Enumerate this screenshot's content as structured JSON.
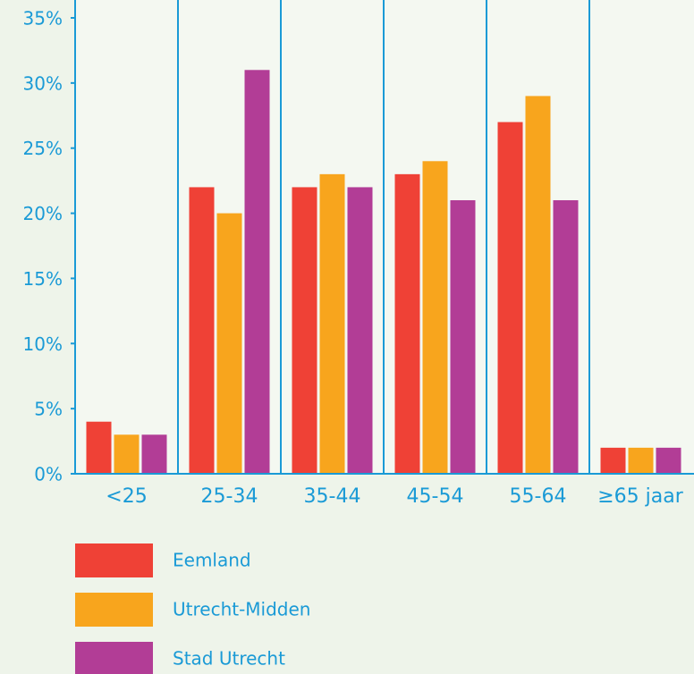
{
  "chart_data": {
    "type": "bar",
    "categories": [
      "<25",
      "25-34",
      "35-44",
      "45-54",
      "55-64",
      "≥65 jaar"
    ],
    "series": [
      {
        "name": "Eemland",
        "color": "#ef4136",
        "values": [
          4,
          22,
          22,
          23,
          27,
          2
        ]
      },
      {
        "name": "Utrecht-Midden",
        "color": "#f8a51d",
        "values": [
          3,
          20,
          23,
          24,
          29,
          2
        ]
      },
      {
        "name": "Stad Utrecht",
        "color": "#b23d96",
        "values": [
          3,
          31,
          22,
          21,
          21,
          2
        ]
      }
    ],
    "ylim": [
      0,
      35
    ],
    "yticks": [
      {
        "value": 0,
        "label": "0%"
      },
      {
        "value": 5,
        "label": "5%"
      },
      {
        "value": 10,
        "label": "10%"
      },
      {
        "value": 15,
        "label": "15%"
      },
      {
        "value": 20,
        "label": "20%"
      },
      {
        "value": 25,
        "label": "25%"
      },
      {
        "value": 30,
        "label": "30%"
      },
      {
        "value": 35,
        "label": "35%"
      }
    ],
    "grid": false,
    "axis_color": "#1a9ad6",
    "legend": "bottom"
  }
}
